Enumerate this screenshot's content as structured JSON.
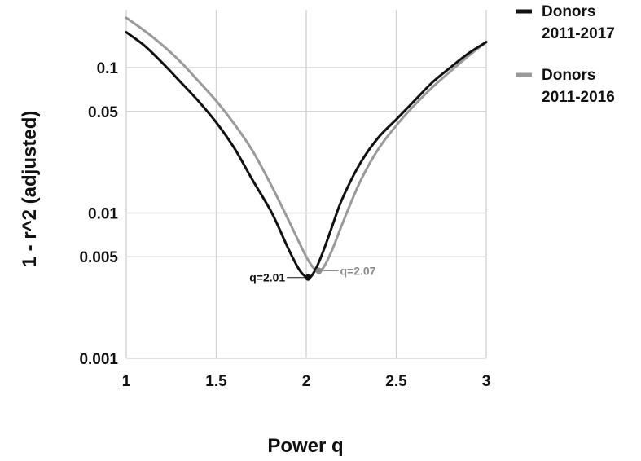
{
  "chart_data": {
    "type": "line",
    "title": "",
    "xlabel": "Power q",
    "ylabel": "1 - r^2 (adjusted)",
    "xlim": [
      1,
      3
    ],
    "ylim": [
      0.001,
      0.25
    ],
    "yscale": "log",
    "grid": true,
    "legend_position": "right",
    "x_ticks": [
      {
        "value": 1,
        "label": "1"
      },
      {
        "value": 1.5,
        "label": "1.5"
      },
      {
        "value": 2,
        "label": "2"
      },
      {
        "value": 2.5,
        "label": "2.5"
      },
      {
        "value": 3,
        "label": "3"
      }
    ],
    "y_ticks": [
      {
        "value": 0.001,
        "label": "0.001"
      },
      {
        "value": 0.005,
        "label": "0.005"
      },
      {
        "value": 0.01,
        "label": "0.01"
      },
      {
        "value": 0.05,
        "label": "0.05"
      },
      {
        "value": 0.1,
        "label": "0.1"
      }
    ],
    "series": [
      {
        "name": "Donors 2011-2017",
        "color": "#111111",
        "x": [
          1.0,
          1.1,
          1.2,
          1.3,
          1.4,
          1.5,
          1.6,
          1.7,
          1.8,
          1.85,
          1.9,
          1.95,
          1.98,
          2.01,
          2.03,
          2.06,
          2.1,
          2.15,
          2.2,
          2.3,
          2.4,
          2.5,
          2.6,
          2.7,
          2.8,
          2.9,
          3.0
        ],
        "y": [
          0.175,
          0.142,
          0.108,
          0.08,
          0.059,
          0.042,
          0.028,
          0.017,
          0.0105,
          0.0078,
          0.0057,
          0.0043,
          0.0038,
          0.0036,
          0.0037,
          0.0043,
          0.0057,
          0.0085,
          0.0125,
          0.022,
          0.033,
          0.044,
          0.059,
          0.079,
          0.1,
          0.125,
          0.15
        ]
      },
      {
        "name": "Donors 2011-2016",
        "color": "#9a9a9a",
        "x": [
          1.0,
          1.1,
          1.2,
          1.3,
          1.4,
          1.5,
          1.6,
          1.7,
          1.8,
          1.9,
          1.95,
          2.0,
          2.04,
          2.07,
          2.1,
          2.15,
          2.2,
          2.3,
          2.4,
          2.5,
          2.6,
          2.7,
          2.8,
          2.9,
          3.0
        ],
        "y": [
          0.22,
          0.18,
          0.143,
          0.11,
          0.081,
          0.059,
          0.041,
          0.027,
          0.016,
          0.009,
          0.0067,
          0.005,
          0.0042,
          0.004,
          0.0043,
          0.0058,
          0.0084,
          0.0165,
          0.0275,
          0.04,
          0.055,
          0.073,
          0.094,
          0.12,
          0.15
        ]
      }
    ],
    "annotations": [
      {
        "text": "q=2.01",
        "x": 2.01,
        "y": 0.0036,
        "color": "#111111",
        "side": "left"
      },
      {
        "text": "q=2.07",
        "x": 2.07,
        "y": 0.004,
        "color": "#8c8c8c",
        "side": "right"
      }
    ]
  }
}
